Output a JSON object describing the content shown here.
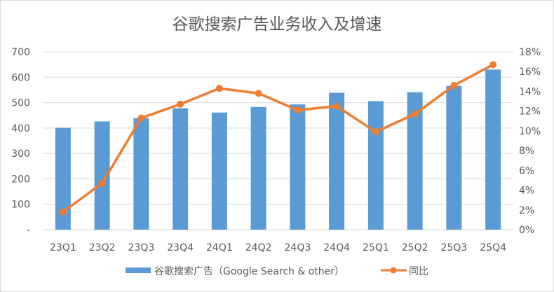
{
  "chart_data": {
    "type": "bar+line",
    "title": "谷歌搜索广告业务收入及增速",
    "categories": [
      "23Q1",
      "23Q2",
      "23Q3",
      "23Q4",
      "24Q1",
      "24Q2",
      "24Q3",
      "24Q4",
      "25Q1",
      "25Q2",
      "25Q3",
      "25Q4"
    ],
    "series": [
      {
        "name": "谷歌搜索广告（Google Search & other）",
        "type": "bar",
        "axis": "left",
        "color": "#5b9bd5",
        "values": [
          401,
          426,
          439,
          478,
          461,
          483,
          493,
          539,
          506,
          541,
          566,
          630
        ]
      },
      {
        "name": "同比",
        "type": "line",
        "axis": "right",
        "color": "#ed7d31",
        "values": [
          1.8,
          4.7,
          11.3,
          12.7,
          14.3,
          13.8,
          12.1,
          12.5,
          9.9,
          11.7,
          14.6,
          16.7
        ]
      }
    ],
    "y_left": {
      "ylim": [
        0,
        700
      ],
      "ticks": [
        "-",
        "100",
        "200",
        "300",
        "400",
        "500",
        "600",
        "700"
      ]
    },
    "y_right": {
      "ylim": [
        0,
        18
      ],
      "ticks": [
        "0%",
        "2%",
        "4%",
        "6%",
        "8%",
        "10%",
        "12%",
        "14%",
        "16%",
        "18%"
      ]
    },
    "grid": true,
    "legend": "bottom"
  }
}
